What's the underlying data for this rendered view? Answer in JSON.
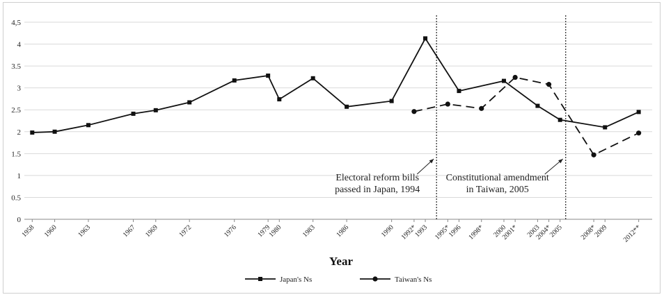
{
  "chart_data": {
    "type": "line",
    "xlabel": "Year",
    "ylabel": "",
    "ylim": [
      0,
      4.5
    ],
    "yticks": [
      "0",
      "0.5",
      "1",
      "1.5",
      "2",
      "2.5",
      "3",
      "3.5",
      "4",
      "4,5"
    ],
    "grid": true,
    "legend_position": "bottom",
    "categories": [
      "1958",
      "1960",
      "1963",
      "1967",
      "1969",
      "1972",
      "1976",
      "1979",
      "1980",
      "1983",
      "1986",
      "1990",
      "1992*",
      "1993",
      "1995*",
      "1996",
      "1998*",
      "2000",
      "2001*",
      "2003",
      "2004*",
      "2005",
      "2008*",
      "2009",
      "2012**"
    ],
    "x_positions": [
      1958,
      1960,
      1963,
      1967,
      1969,
      1972,
      1976,
      1979,
      1980,
      1983,
      1986,
      1990,
      1992,
      1993,
      1995,
      1996,
      1998,
      2000,
      2001,
      2003,
      2004,
      2005,
      2008,
      2009,
      2012
    ],
    "series": [
      {
        "name": "Japan's Ns",
        "marker": "square",
        "style": "solid",
        "points": [
          [
            1958,
            1.98
          ],
          [
            1960,
            2.0
          ],
          [
            1963,
            2.15
          ],
          [
            1967,
            2.41
          ],
          [
            1969,
            2.49
          ],
          [
            1972,
            2.67
          ],
          [
            1976,
            3.17
          ],
          [
            1979,
            3.28
          ],
          [
            1980,
            2.74
          ],
          [
            1983,
            3.22
          ],
          [
            1986,
            2.57
          ],
          [
            1990,
            2.7
          ],
          [
            1993,
            4.13
          ],
          [
            1996,
            2.93
          ],
          [
            2000,
            3.16
          ],
          [
            2003,
            2.59
          ],
          [
            2005,
            2.27
          ],
          [
            2009,
            2.1
          ],
          [
            2012,
            2.45
          ]
        ]
      },
      {
        "name": "Taiwan's Ns",
        "marker": "circle",
        "style": "dashed",
        "points": [
          [
            1992,
            2.46
          ],
          [
            1995,
            2.63
          ],
          [
            1998,
            2.53
          ],
          [
            2001,
            3.24
          ],
          [
            2004,
            3.08
          ],
          [
            2008,
            1.47
          ],
          [
            2012,
            1.97
          ]
        ]
      }
    ],
    "reference_lines": [
      {
        "x": 1994,
        "label_lines": [
          "Electoral reform bills",
          "passed  in Japan, 1994"
        ]
      },
      {
        "x": 2005.5,
        "label_lines": [
          "Constitutional amendment",
          "in Taiwan, 2005"
        ]
      }
    ]
  }
}
